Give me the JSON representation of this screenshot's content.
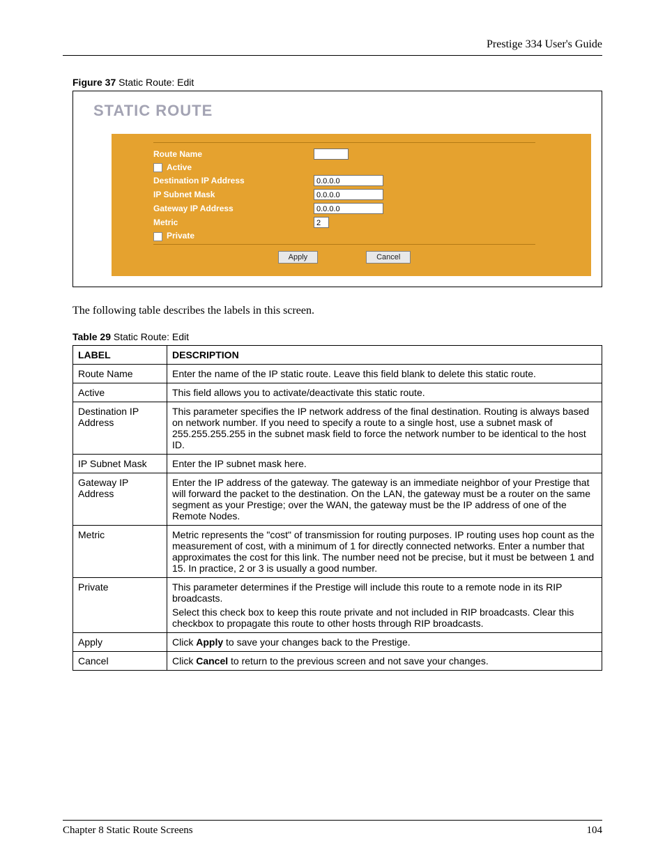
{
  "header": {
    "doc_title": "Prestige 334 User's Guide"
  },
  "figure": {
    "caption_bold": "Figure 37",
    "caption_rest": "  Static Route: Edit",
    "title": "STATIC ROUTE",
    "panel_bg": "#e5a22f",
    "label_color": "#ffffff",
    "form": {
      "route_name_label": "Route Name",
      "route_name_value": "",
      "active_label": "Active",
      "dest_ip_label": "Destination IP Address",
      "dest_ip_value": "0.0.0.0",
      "subnet_label": "IP Subnet Mask",
      "subnet_value": "0.0.0.0",
      "gateway_label": "Gateway IP Address",
      "gateway_value": "0.0.0.0",
      "metric_label": "Metric",
      "metric_value": "2",
      "private_label": "Private",
      "apply_label": "Apply",
      "cancel_label": "Cancel"
    }
  },
  "body_text": "The following table describes the labels in this screen.",
  "table": {
    "caption_bold": "Table 29",
    "caption_rest": "  Static Route: Edit",
    "headers": {
      "label": "LABEL",
      "description": "DESCRIPTION"
    },
    "rows": [
      {
        "label": "Route Name",
        "desc": "Enter the name of the IP static route. Leave this field blank to delete this static route."
      },
      {
        "label": "Active",
        "desc": "This field allows you to activate/deactivate this static route."
      },
      {
        "label": "Destination IP Address",
        "desc": "This parameter specifies the IP network address of the final destination.  Routing is always based on network number. If you need to specify a route to a single host, use a subnet mask of 255.255.255.255 in the subnet mask field to force the network number to be identical to the host ID."
      },
      {
        "label": "IP Subnet Mask",
        "desc": "Enter the IP subnet mask here."
      },
      {
        "label": "Gateway IP Address",
        "desc": "Enter the IP address of the gateway. The gateway is an immediate neighbor of your Prestige that will forward the packet to the destination. On the LAN, the gateway must be a router on the same segment as your Prestige; over the WAN, the gateway must be the IP address of one of the Remote Nodes."
      },
      {
        "label": "Metric",
        "desc": "Metric represents the \"cost\" of transmission for routing purposes. IP routing uses hop count as the measurement of cost, with a minimum of 1 for directly connected networks. Enter a number that approximates the cost for this link. The number need not be precise, but it must be between 1 and 15. In practice, 2 or 3 is usually a good number."
      },
      {
        "label": "Private",
        "desc_multi": [
          "This parameter determines if the Prestige will include this route to a remote node in its RIP broadcasts.",
          "Select this check box to keep this route private and not included in RIP broadcasts. Clear this checkbox to propagate this route to other hosts through RIP broadcasts."
        ]
      },
      {
        "label": "Apply",
        "desc_rich": {
          "pre": "Click ",
          "bold": "Apply",
          "post": " to save your changes back to the Prestige."
        }
      },
      {
        "label": "Cancel",
        "desc_rich": {
          "pre": "Click ",
          "bold": "Cancel",
          "post": " to return to the previous screen and not save your changes."
        }
      }
    ]
  },
  "footer": {
    "chapter": "Chapter 8 Static Route Screens",
    "page": "104"
  }
}
